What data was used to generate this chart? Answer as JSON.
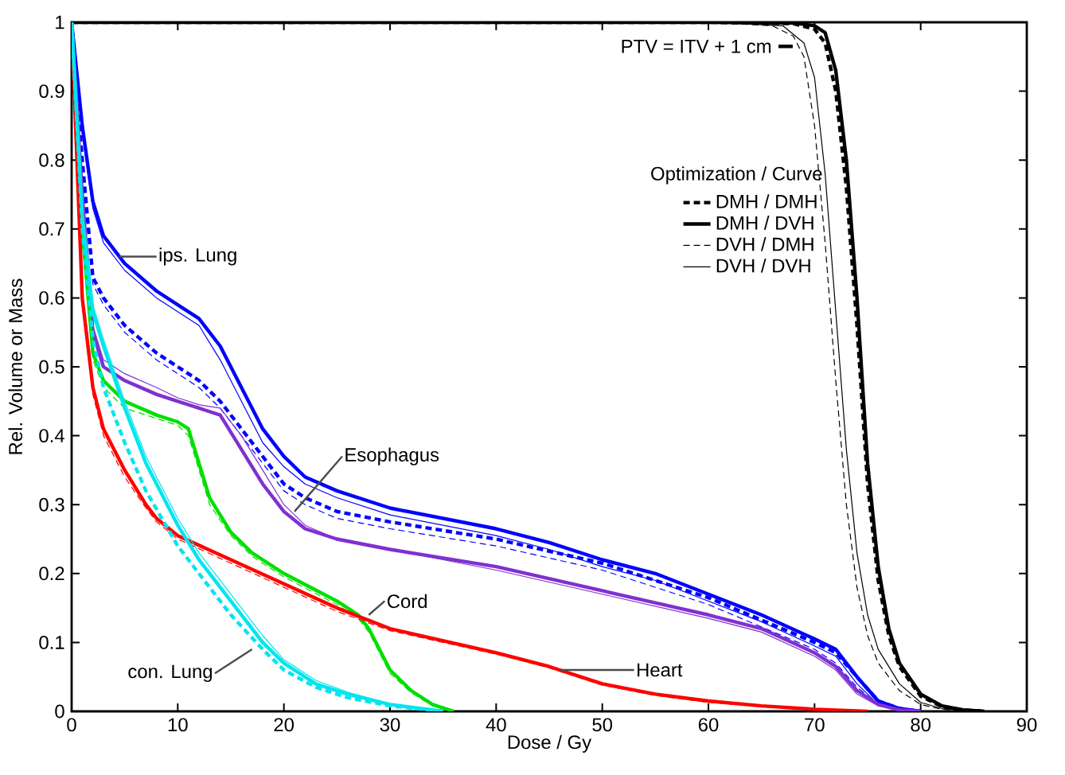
{
  "chart_data": {
    "type": "line",
    "xlabel": "Dose / Gy",
    "ylabel": "Rel. Volume or Mass",
    "xlim": [
      0,
      90
    ],
    "ylim": [
      0,
      1
    ],
    "xticks": [
      0,
      10,
      20,
      30,
      40,
      50,
      60,
      70,
      80,
      90
    ],
    "yticks": [
      0,
      0.1,
      0.2,
      0.3,
      0.4,
      0.5,
      0.6,
      0.7,
      0.8,
      0.9,
      1
    ],
    "grid": false,
    "marker": "none",
    "legend": "top right",
    "legend_title": "Optimization  /  Curve",
    "annotations": [
      "PTV = ITV + 1 cm",
      {
        "text": "ips. Lung",
        "x": 4.5,
        "y": 0.66
      },
      {
        "text": "Esophagus",
        "x": 21,
        "y": 0.29
      },
      {
        "text": "Cord",
        "x": 28,
        "y": 0.14
      },
      {
        "text": "con. Lung",
        "x": 17,
        "y": 0.09
      },
      {
        "text": "Heart",
        "x": 46,
        "y": 0.06
      }
    ],
    "series": [
      {
        "name": "DMH / DMH",
        "color": "#000000",
        "line_style": "dashed",
        "x": [
          0,
          60,
          68,
          70,
          71,
          72,
          73,
          74,
          75,
          76,
          77,
          78,
          80,
          82,
          84,
          86
        ],
        "values": [
          1,
          1,
          0.998,
          0.99,
          0.97,
          0.9,
          0.76,
          0.56,
          0.33,
          0.19,
          0.11,
          0.065,
          0.022,
          0.007,
          0.002,
          0
        ]
      },
      {
        "name": "DMH / DVH",
        "color": "#000000",
        "line_style": "solid",
        "x": [
          0,
          60,
          68,
          70,
          71,
          72,
          73,
          74,
          75,
          76,
          77,
          78,
          80,
          82,
          84,
          86
        ],
        "values": [
          1,
          1,
          0.999,
          0.995,
          0.985,
          0.93,
          0.8,
          0.6,
          0.36,
          0.21,
          0.12,
          0.07,
          0.025,
          0.008,
          0.002,
          0
        ]
      },
      {
        "name": "DVH / DMH",
        "color": "#000000",
        "line_style": "dashed",
        "x": [
          0,
          60,
          66,
          68,
          69,
          70,
          71,
          72,
          73,
          74,
          75,
          76,
          78,
          80,
          82,
          85
        ],
        "values": [
          1,
          1,
          0.995,
          0.98,
          0.95,
          0.85,
          0.68,
          0.48,
          0.3,
          0.18,
          0.11,
          0.07,
          0.03,
          0.01,
          0.003,
          0
        ]
      },
      {
        "name": "DVH / DVH",
        "color": "#000000",
        "line_style": "solid",
        "x": [
          0,
          60,
          67,
          69,
          70,
          71,
          72,
          73,
          74,
          75,
          76,
          78,
          80,
          82,
          85
        ],
        "values": [
          1,
          1,
          0.995,
          0.97,
          0.92,
          0.78,
          0.58,
          0.38,
          0.23,
          0.14,
          0.09,
          0.04,
          0.013,
          0.004,
          0
        ]
      },
      {
        "color": "#0000ff",
        "line_style": "dashed",
        "x": [
          0,
          1,
          2,
          3,
          5,
          8,
          10,
          12,
          14,
          16,
          18,
          20,
          22,
          25,
          30,
          40,
          50,
          60,
          70,
          72,
          74,
          76,
          78,
          80
        ],
        "values": [
          1,
          0.8,
          0.63,
          0.6,
          0.56,
          0.52,
          0.5,
          0.48,
          0.45,
          0.41,
          0.37,
          0.33,
          0.31,
          0.29,
          0.275,
          0.25,
          0.215,
          0.165,
          0.1,
          0.085,
          0.05,
          0.015,
          0.004,
          0
        ]
      },
      {
        "color": "#0000ff",
        "line_style": "solid",
        "x": [
          0,
          1,
          2,
          3,
          5,
          8,
          10,
          12,
          14,
          16,
          18,
          20,
          22,
          25,
          30,
          40,
          45,
          50,
          55,
          60,
          65,
          70,
          72,
          74,
          76,
          78,
          80
        ],
        "values": [
          1,
          0.85,
          0.74,
          0.69,
          0.65,
          0.61,
          0.59,
          0.57,
          0.53,
          0.47,
          0.41,
          0.37,
          0.34,
          0.32,
          0.295,
          0.265,
          0.245,
          0.22,
          0.2,
          0.17,
          0.14,
          0.105,
          0.09,
          0.05,
          0.015,
          0.004,
          0
        ]
      },
      {
        "color": "#0000ff",
        "line_style": "dashed",
        "x": [
          0,
          1,
          2,
          3,
          5,
          8,
          10,
          12,
          14,
          16,
          18,
          20,
          22,
          25,
          30,
          40,
          50,
          60,
          70,
          72,
          74,
          76,
          78,
          80
        ],
        "values": [
          1,
          0.79,
          0.62,
          0.59,
          0.55,
          0.51,
          0.49,
          0.47,
          0.44,
          0.4,
          0.36,
          0.32,
          0.3,
          0.28,
          0.265,
          0.24,
          0.205,
          0.155,
          0.09,
          0.07,
          0.035,
          0.01,
          0.003,
          0
        ]
      },
      {
        "color": "#0000ff",
        "line_style": "solid",
        "x": [
          0,
          1,
          2,
          3,
          5,
          8,
          10,
          12,
          14,
          16,
          18,
          20,
          22,
          25,
          30,
          40,
          45,
          50,
          55,
          60,
          65,
          70,
          72,
          74,
          76,
          78,
          80
        ],
        "values": [
          1,
          0.84,
          0.73,
          0.68,
          0.64,
          0.6,
          0.58,
          0.56,
          0.51,
          0.45,
          0.39,
          0.355,
          0.33,
          0.31,
          0.285,
          0.255,
          0.235,
          0.21,
          0.19,
          0.16,
          0.13,
          0.095,
          0.08,
          0.04,
          0.01,
          0.003,
          0
        ]
      },
      {
        "color": "#8030d0",
        "line_style": "solid",
        "x": [
          0,
          1,
          2,
          3,
          5,
          8,
          10,
          12,
          14,
          16,
          18,
          20,
          22,
          25,
          30,
          40,
          50,
          60,
          65,
          70,
          72,
          74,
          76,
          78,
          80
        ],
        "values": [
          1,
          0.75,
          0.55,
          0.5,
          0.48,
          0.46,
          0.45,
          0.44,
          0.43,
          0.38,
          0.33,
          0.29,
          0.265,
          0.25,
          0.235,
          0.21,
          0.175,
          0.14,
          0.12,
          0.085,
          0.065,
          0.03,
          0.01,
          0.002,
          0
        ]
      },
      {
        "color": "#8030d0",
        "line_style": "solid",
        "x": [
          0,
          1,
          2,
          3,
          5,
          8,
          10,
          12,
          14,
          16,
          18,
          20,
          22,
          25,
          30,
          40,
          50,
          60,
          65,
          70,
          72,
          74,
          76,
          78,
          80
        ],
        "values": [
          1,
          0.76,
          0.56,
          0.51,
          0.49,
          0.47,
          0.455,
          0.445,
          0.44,
          0.4,
          0.35,
          0.3,
          0.27,
          0.25,
          0.235,
          0.205,
          0.17,
          0.135,
          0.115,
          0.08,
          0.06,
          0.025,
          0.008,
          0.002,
          0
        ]
      },
      {
        "color": "#00e000",
        "line_style": "solid",
        "x": [
          0,
          1,
          2,
          3,
          5,
          8,
          10,
          11,
          12,
          13,
          15,
          17,
          20,
          25,
          27,
          28,
          29,
          30,
          32,
          34,
          36
        ],
        "values": [
          1,
          0.7,
          0.52,
          0.48,
          0.45,
          0.43,
          0.42,
          0.41,
          0.36,
          0.31,
          0.26,
          0.23,
          0.2,
          0.16,
          0.14,
          0.12,
          0.09,
          0.06,
          0.03,
          0.01,
          0
        ]
      },
      {
        "color": "#00e000",
        "line_style": "dashed",
        "x": [
          0,
          1,
          2,
          3,
          5,
          8,
          10,
          11,
          12,
          13,
          15,
          17,
          20,
          25,
          27,
          28,
          29,
          30,
          32,
          34,
          36
        ],
        "values": [
          1,
          0.69,
          0.51,
          0.47,
          0.44,
          0.425,
          0.415,
          0.4,
          0.35,
          0.3,
          0.255,
          0.225,
          0.195,
          0.155,
          0.135,
          0.115,
          0.085,
          0.055,
          0.027,
          0.008,
          0
        ]
      },
      {
        "color": "#ff0000",
        "line_style": "solid",
        "x": [
          0,
          1,
          2,
          3,
          5,
          7,
          8,
          10,
          15,
          20,
          25,
          30,
          40,
          45,
          50,
          55,
          60,
          65,
          70,
          75
        ],
        "values": [
          1,
          0.6,
          0.47,
          0.41,
          0.35,
          0.3,
          0.28,
          0.255,
          0.22,
          0.185,
          0.15,
          0.12,
          0.085,
          0.065,
          0.04,
          0.025,
          0.015,
          0.008,
          0.003,
          0
        ]
      },
      {
        "color": "#ff0000",
        "line_style": "dashed",
        "x": [
          0,
          1,
          2,
          3,
          5,
          7,
          8,
          10,
          15,
          20,
          25,
          30,
          40,
          45,
          50,
          55,
          60,
          65,
          70,
          75
        ],
        "values": [
          1,
          0.59,
          0.46,
          0.4,
          0.34,
          0.295,
          0.275,
          0.25,
          0.215,
          0.18,
          0.145,
          0.117,
          0.083,
          0.063,
          0.038,
          0.023,
          0.013,
          0.007,
          0.002,
          0
        ]
      },
      {
        "color": "#00e5ee",
        "line_style": "dashed",
        "x": [
          0,
          1,
          2,
          3,
          5,
          7,
          10,
          12,
          15,
          18,
          20,
          23,
          26,
          30,
          35
        ],
        "values": [
          1,
          0.7,
          0.54,
          0.47,
          0.39,
          0.32,
          0.24,
          0.2,
          0.14,
          0.09,
          0.06,
          0.035,
          0.02,
          0.008,
          0
        ]
      },
      {
        "color": "#00e5ee",
        "line_style": "solid",
        "x": [
          0,
          1,
          2,
          3,
          5,
          7,
          10,
          12,
          15,
          18,
          20,
          23,
          26,
          30,
          35
        ],
        "values": [
          1,
          0.72,
          0.58,
          0.53,
          0.44,
          0.36,
          0.27,
          0.22,
          0.16,
          0.1,
          0.07,
          0.04,
          0.025,
          0.01,
          0
        ]
      },
      {
        "color": "#00e5ee",
        "line_style": "solid",
        "x": [
          0,
          1,
          2,
          3,
          5,
          7,
          10,
          12,
          15,
          18,
          20,
          23,
          26,
          30,
          35
        ],
        "values": [
          1,
          0.73,
          0.59,
          0.54,
          0.45,
          0.37,
          0.28,
          0.23,
          0.17,
          0.11,
          0.075,
          0.045,
          0.028,
          0.011,
          0
        ]
      }
    ]
  }
}
